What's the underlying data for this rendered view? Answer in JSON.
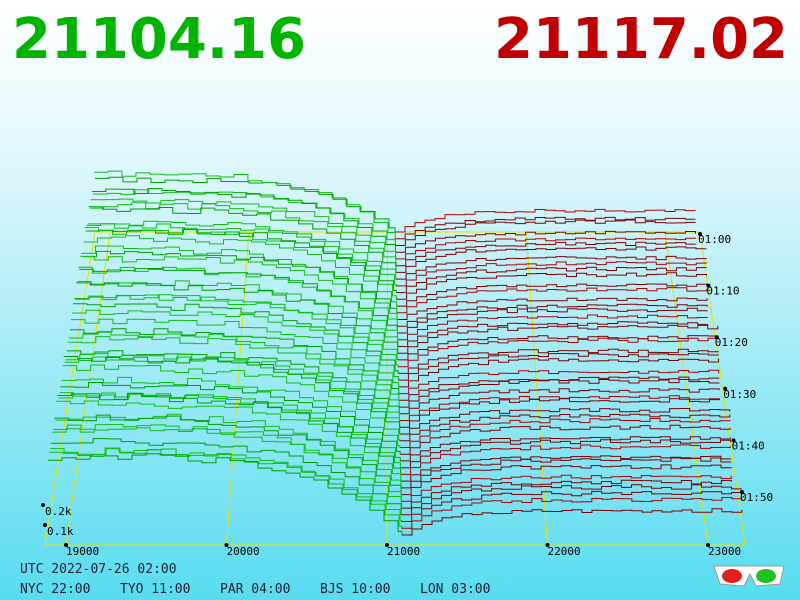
{
  "header": {
    "bid": "21104.16",
    "ask": "21117.02"
  },
  "axes": {
    "price_ticks": [
      "19000",
      "20000",
      "21000",
      "22000",
      "23000"
    ],
    "volume_ticks": [
      "0.2k",
      "0.1k"
    ],
    "time_ticks": [
      "01:00",
      "01:10",
      "01:20",
      "01:30",
      "01:40",
      "01:50"
    ]
  },
  "clock": {
    "utc": "UTC 2022-07-26 02:00",
    "cities": [
      "NYC 22:00",
      "TYO 11:00",
      "PAR 04:00",
      "BJS 10:00",
      "LON 03:00"
    ]
  }
}
